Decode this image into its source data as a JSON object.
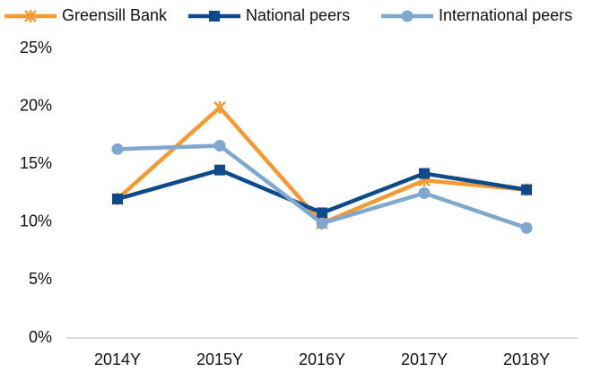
{
  "chart_data": {
    "type": "line",
    "categories": [
      "2014Y",
      "2015Y",
      "2016Y",
      "2017Y",
      "2018Y"
    ],
    "series": [
      {
        "name": "Greensill Bank",
        "color": "#f39a34",
        "marker": "star",
        "values": [
          12.0,
          19.9,
          9.9,
          13.6,
          12.8
        ]
      },
      {
        "name": "National peers",
        "color": "#0d4a8c",
        "marker": "square",
        "values": [
          12.0,
          14.5,
          10.8,
          14.2,
          12.8
        ]
      },
      {
        "name": "International peers",
        "color": "#80a8cf",
        "marker": "circle",
        "values": [
          16.3,
          16.6,
          9.9,
          12.5,
          9.5
        ]
      }
    ],
    "ylim": [
      0,
      25
    ],
    "yticks": [
      {
        "value": 0,
        "label": "0%"
      },
      {
        "value": 5,
        "label": "5%"
      },
      {
        "value": 10,
        "label": "10%"
      },
      {
        "value": 15,
        "label": "15%"
      },
      {
        "value": 20,
        "label": "20%"
      },
      {
        "value": 25,
        "label": "25%"
      }
    ],
    "grid": false,
    "legend": "top"
  }
}
